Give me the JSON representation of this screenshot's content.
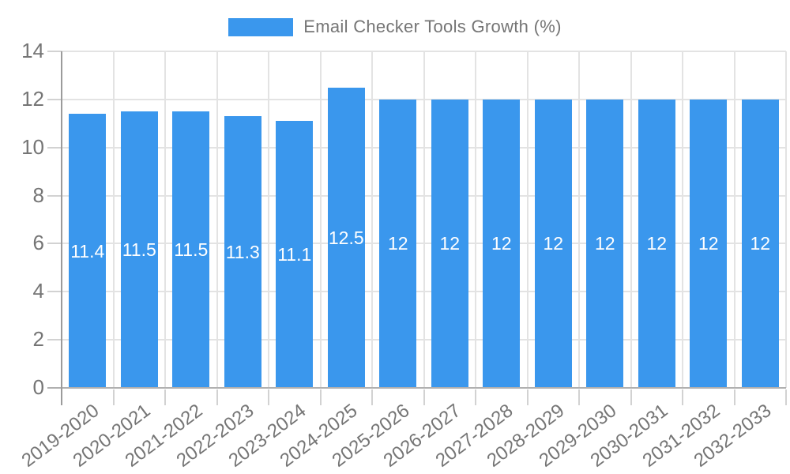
{
  "legend": {
    "label": "Email Checker Tools Growth (%)"
  },
  "colors": {
    "bar": "#3a97ed",
    "bar_label": "#ffffff",
    "gridline": "#e3e3e3",
    "tick": "#d2d2d2",
    "axis_line": "#9b9b9b",
    "baseline": "#b0b0b0",
    "tick_label": "#757575",
    "legend_text": "#757575",
    "background": "#ffffff"
  },
  "chart_data": {
    "type": "bar",
    "title": "Email Checker Tools Growth (%)",
    "categories": [
      "2019-2020",
      "2020-2021",
      "2021-2022",
      "2022-2023",
      "2023-2024",
      "2024-2025",
      "2025-2026",
      "2026-2027",
      "2027-2028",
      "2028-2029",
      "2029-2030",
      "2030-2031",
      "2031-2032",
      "2032-2033"
    ],
    "values": [
      11.4,
      11.5,
      11.5,
      11.3,
      11.1,
      12.5,
      12,
      12,
      12,
      12,
      12,
      12,
      12,
      12
    ],
    "bar_labels": [
      "11.4",
      "11.5",
      "11.5",
      "11.3",
      "11.1",
      "12.5",
      "12",
      "12",
      "12",
      "12",
      "12",
      "12",
      "12",
      "12"
    ],
    "xlabel": "",
    "ylabel": "",
    "ylim": [
      0,
      14
    ],
    "yticks": [
      0,
      2,
      4,
      6,
      8,
      10,
      12,
      14
    ],
    "grid": true,
    "legend_position": "top",
    "x_tick_rotation_deg": -37
  }
}
